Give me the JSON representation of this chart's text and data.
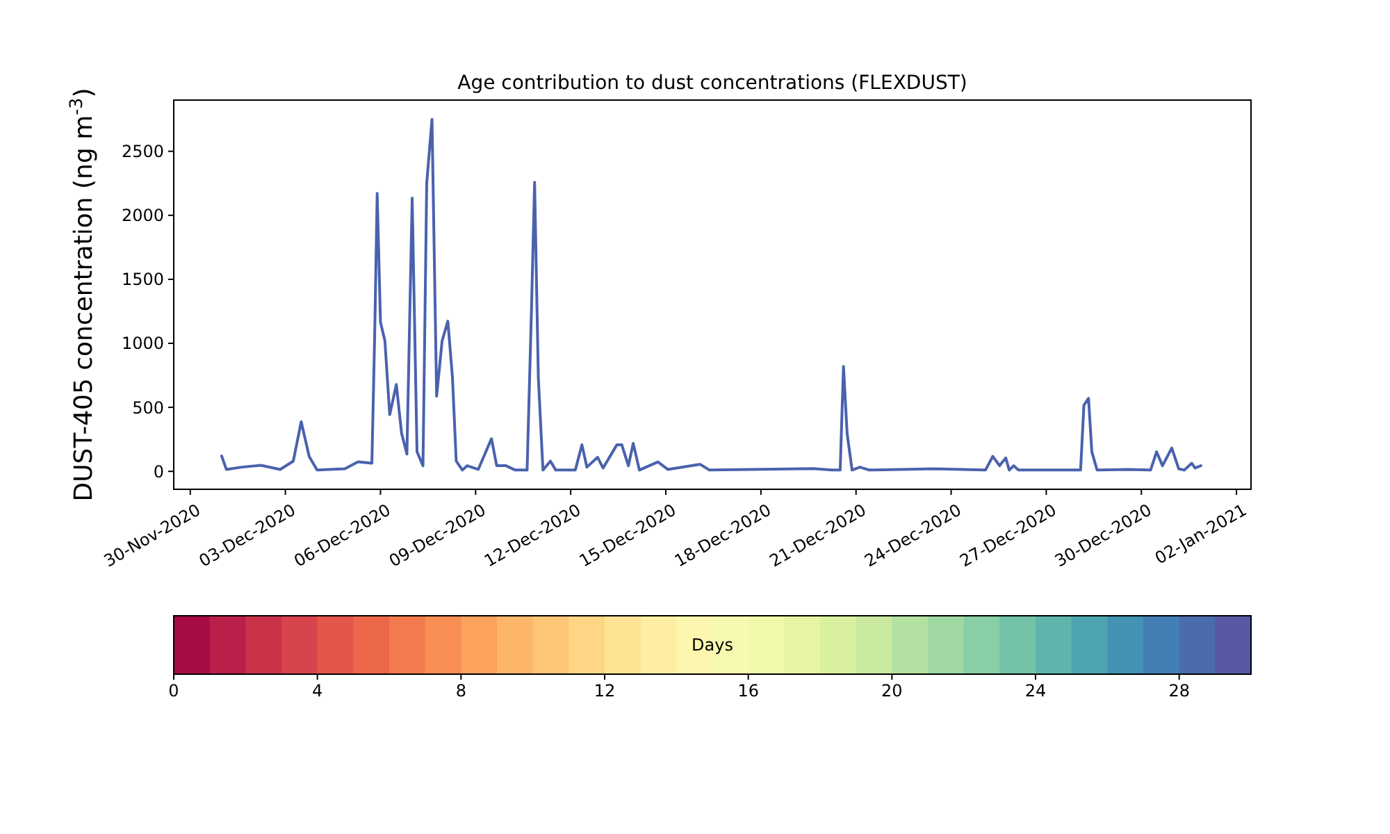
{
  "chart_data": {
    "type": "line",
    "title": "Age contribution to dust concentrations (FLEXDUST)",
    "ylabel": "DUST-405 concentration (ng m$^{-3}$)",
    "xlim": [
      "2020-11-29T11:30",
      "2021-01-02T11:00"
    ],
    "ylim": [
      -140,
      2900
    ],
    "xticks": [
      {
        "value": "2020-11-30",
        "label": "30-Nov-2020"
      },
      {
        "value": "2020-12-03",
        "label": "03-Dec-2020"
      },
      {
        "value": "2020-12-06",
        "label": "06-Dec-2020"
      },
      {
        "value": "2020-12-09",
        "label": "09-Dec-2020"
      },
      {
        "value": "2020-12-12",
        "label": "12-Dec-2020"
      },
      {
        "value": "2020-12-15",
        "label": "15-Dec-2020"
      },
      {
        "value": "2020-12-18",
        "label": "18-Dec-2020"
      },
      {
        "value": "2020-12-21",
        "label": "21-Dec-2020"
      },
      {
        "value": "2020-12-24",
        "label": "24-Dec-2020"
      },
      {
        "value": "2020-12-27",
        "label": "27-Dec-2020"
      },
      {
        "value": "2020-12-30",
        "label": "30-Dec-2020"
      },
      {
        "value": "2021-01-02",
        "label": "02-Jan-2021"
      }
    ],
    "yticks": [
      0,
      500,
      1000,
      1500,
      2000,
      2500
    ],
    "clabel": "Days",
    "clim": [
      0,
      30
    ],
    "cticks": [
      0,
      4,
      8,
      12,
      16,
      20,
      24,
      28
    ],
    "x": [
      "2020-11-30T23:45",
      "2020-12-01T03:20",
      "2020-12-01T15:00",
      "2020-12-02T05:30",
      "2020-12-02T20:00",
      "2020-12-03T06:00",
      "2020-12-03T12:00",
      "2020-12-03T18:00",
      "2020-12-04T00:00",
      "2020-12-04T21:00",
      "2020-12-05T07:00",
      "2020-12-05T17:30",
      "2020-12-05T19:40",
      "2020-12-05T21:30",
      "2020-12-06T00:00",
      "2020-12-06T03:20",
      "2020-12-06T07:00",
      "2020-12-06T12:00",
      "2020-12-06T16:00",
      "2020-12-06T20:00",
      "2020-12-07T00:00",
      "2020-12-07T03:40",
      "2020-12-07T08:10",
      "2020-12-07T11:00",
      "2020-12-07T15:00",
      "2020-12-07T18:30",
      "2020-12-07T22:40",
      "2020-12-08T03:00",
      "2020-12-08T06:30",
      "2020-12-08T09:20",
      "2020-12-08T14:00",
      "2020-12-08T17:40",
      "2020-12-09T02:00",
      "2020-12-09T12:00",
      "2020-12-09T16:00",
      "2020-12-09T23:00",
      "2020-12-10T06:00",
      "2020-12-10T15:00",
      "2020-12-10T18:20",
      "2020-12-10T20:40",
      "2020-12-10T23:30",
      "2020-12-11T03:00",
      "2020-12-11T08:40",
      "2020-12-11T12:40",
      "2020-12-12T03:30",
      "2020-12-12T08:30",
      "2020-12-12T12:15",
      "2020-12-12T20:20",
      "2020-12-13T00:30",
      "2020-12-13T11:00",
      "2020-12-13T14:40",
      "2020-12-13T19:40",
      "2020-12-13T23:20",
      "2020-12-14T04:00",
      "2020-12-14T18:00",
      "2020-12-15T01:30",
      "2020-12-16T02:00",
      "2020-12-16T09:00",
      "2020-12-17T15:00",
      "2020-12-19T15:40",
      "2020-12-20T05:40",
      "2020-12-20T12:00",
      "2020-12-20T14:30",
      "2020-12-20T17:15",
      "2020-12-20T21:00",
      "2020-12-21T03:00",
      "2020-12-21T10:00",
      "2020-12-23T11:00",
      "2020-12-25T02:00",
      "2020-12-25T07:30",
      "2020-12-25T12:40",
      "2020-12-25T17:20",
      "2020-12-25T20:00",
      "2020-12-25T23:20",
      "2020-12-26T03:00",
      "2020-12-28T02:00",
      "2020-12-28T04:30",
      "2020-12-28T08:00",
      "2020-12-28T10:30",
      "2020-12-28T14:30",
      "2020-12-29T14:00",
      "2020-12-30T07:00",
      "2020-12-30T11:30",
      "2020-12-30T16:00",
      "2020-12-30T23:00",
      "2020-12-31T04:20",
      "2020-12-31T08:30",
      "2020-12-31T14:10",
      "2020-12-31T16:40",
      "2020-12-31T21:00"
    ],
    "series": [
      {
        "color": "#4a62ad",
        "values": [
          120,
          15,
          33,
          47,
          15,
          80,
          388,
          117,
          10,
          20,
          74,
          63,
          1093,
          2171,
          1165,
          1020,
          443,
          678,
          297,
          135,
          2135,
          153,
          44,
          2250,
          2750,
          587,
          1020,
          1173,
          732,
          80,
          10,
          44,
          15,
          255,
          44,
          44,
          10,
          10,
          1275,
          2258,
          732,
          10,
          80,
          10,
          10,
          208,
          33,
          110,
          26,
          208,
          208,
          44,
          219,
          10,
          74,
          15,
          55,
          10,
          15,
          22,
          10,
          10,
          819,
          297,
          10,
          33,
          10,
          20,
          10,
          117,
          44,
          105,
          10,
          44,
          10,
          10,
          516,
          570,
          153,
          10,
          15,
          10,
          153,
          44,
          182,
          20,
          10,
          63,
          26,
          44
        ]
      }
    ]
  }
}
